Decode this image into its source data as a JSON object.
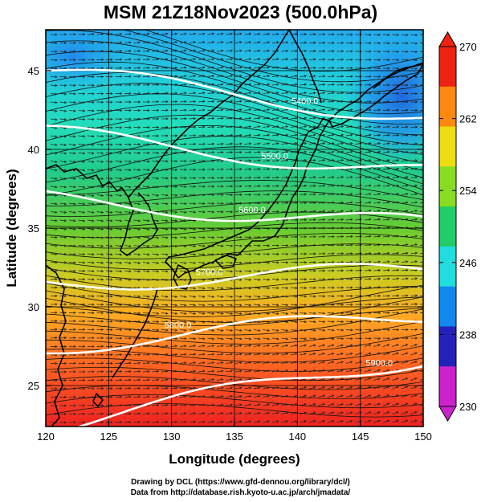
{
  "title": "MSM 21Z18Nov2023 (500.0hPa)",
  "credits": {
    "line1": "Drawing by DCL (https://www.gfd-dennou.org/library/dcl/)",
    "line2": "Data from http://database.rish.kyoto-u.ac.jp/arch/jmadata/"
  },
  "chart_data": {
    "type": "heatmap",
    "xlabel": "Longitude (degrees)",
    "ylabel": "Latitude  (degrees)",
    "xlim": [
      120,
      150
    ],
    "ylim": [
      22.4,
      47.6
    ],
    "xticks": [
      120,
      125,
      130,
      135,
      140,
      145,
      150
    ],
    "yticks": [
      25,
      30,
      35,
      40,
      45
    ],
    "colorbar": {
      "min": 230,
      "max": 270,
      "ticks": [
        230,
        238,
        246,
        254,
        262,
        270
      ],
      "colors": [
        "#cc22cc",
        "#2222bb",
        "#1188ee",
        "#22dddd",
        "#22cc66",
        "#88dd22",
        "#eedd11",
        "#ff8811",
        "#ee2211"
      ]
    },
    "field": "temperature (K) shaded",
    "contours": [
      {
        "label": "5400.0",
        "lat_at_120": 45.0,
        "lat_at_150": 42.0
      },
      {
        "label": "5500.0",
        "lat_at_120": 41.0,
        "lat_at_150": 38.5
      },
      {
        "label": "5600.0",
        "lat_at_120": 36.8,
        "lat_at_150": 35.2
      },
      {
        "label": "5700.0",
        "lat_at_120": 31.5,
        "lat_at_150": 32.3
      },
      {
        "label": "5800.0",
        "lat_at_120": 27.5,
        "lat_at_150": 29.5
      },
      {
        "label": "5900.0",
        "lat_at_120": 22.4,
        "lat_at_150": 26.8
      }
    ],
    "wind": "westerly wind vectors and streamlines"
  }
}
